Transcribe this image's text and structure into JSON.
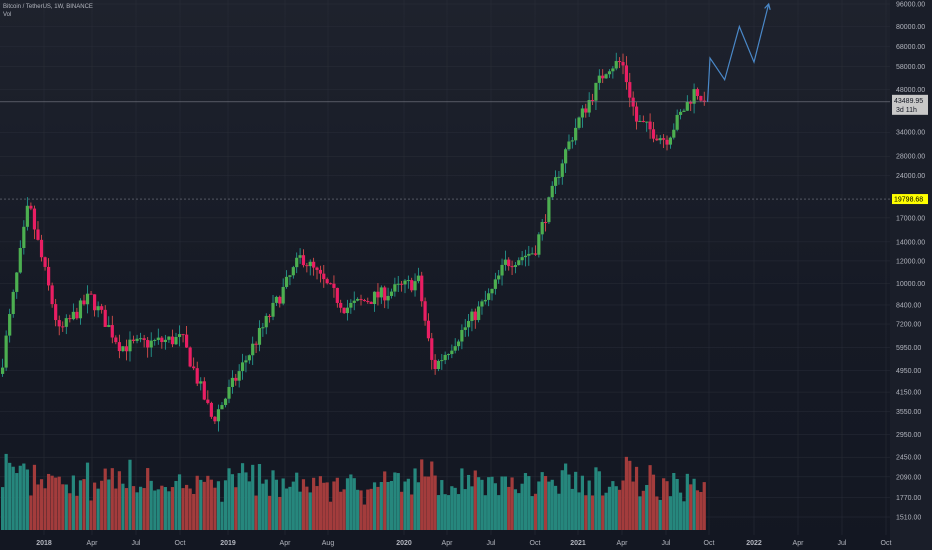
{
  "header": {
    "symbol_line": "Bitcoin / TetherUS, 1W, BINANCE",
    "volume_label": "Vol"
  },
  "price_axis": {
    "ticks": [
      96000,
      80000,
      68000,
      58000,
      48000,
      34000,
      28000,
      24000,
      17000,
      14000,
      12000,
      10000,
      8400,
      7200,
      5950,
      4950,
      4150,
      3550,
      2950,
      2450,
      2090,
      1770,
      1510
    ],
    "tick_labels": [
      "96000.00",
      "80000.00",
      "68000.00",
      "58000.00",
      "48000.00",
      "34000.00",
      "28000.00",
      "24000.00",
      "17000.00",
      "14000.00",
      "12000.00",
      "10000.00",
      "8400.00",
      "7200.00",
      "5950.00",
      "4950.00",
      "4150.00",
      "3550.00",
      "2950.00",
      "2450.00",
      "2090.00",
      "1770.00",
      "1510.00"
    ],
    "scale": "log"
  },
  "time_axis": {
    "labels": [
      "2018",
      "Apr",
      "Jul",
      "Oct",
      "2019",
      "Apr",
      "Aug",
      "2020",
      "Apr",
      "Jul",
      "Oct",
      "2021",
      "Apr",
      "Jul",
      "Oct",
      "2022",
      "Apr",
      "Jul",
      "Oct"
    ]
  },
  "current_price": {
    "value": "43489.95",
    "countdown": "3d 11h"
  },
  "ath_level": {
    "value": "19798.68"
  },
  "colors": {
    "up": "#26a69a",
    "down": "#ef5350",
    "up_body": "#4caf50",
    "down_body": "#e91e63",
    "vol_up": "#26877d",
    "vol_down": "#a33c3c",
    "projection": "#4a88c8",
    "grid": "#2a2e39",
    "text": "#b2b5be",
    "ath_badge": "#ffff00",
    "price_badge": "#c8c8c8"
  },
  "chart_data": {
    "type": "candlestick",
    "interval": "1W",
    "y_scale": "log",
    "time_labels": [
      "2018",
      "Apr",
      "Jul",
      "Oct",
      "2019",
      "Apr",
      "Aug",
      "2020",
      "Apr",
      "Jul",
      "Oct",
      "2021",
      "Apr",
      "Jul",
      "Oct",
      "2022",
      "Apr",
      "Jul",
      "Oct"
    ],
    "price_anchors": [
      {
        "period": "Oct 2017",
        "close": 4300
      },
      {
        "period": "Dec 2017",
        "close": 19000
      },
      {
        "period": "Feb 2018",
        "close": 6700
      },
      {
        "period": "Apr 2018",
        "close": 9000
      },
      {
        "period": "Jun 2018",
        "close": 6000
      },
      {
        "period": "Oct 2018",
        "close": 6400
      },
      {
        "period": "Dec 2018",
        "close": 3300
      },
      {
        "period": "Jun 2019",
        "close": 12500
      },
      {
        "period": "Sep 2019",
        "close": 8200
      },
      {
        "period": "Feb 2020",
        "close": 10200
      },
      {
        "period": "Mar 2020",
        "close": 5000
      },
      {
        "period": "Jul 2020",
        "close": 9200
      },
      {
        "period": "Aug 2020",
        "close": 11800
      },
      {
        "period": "Oct 2020",
        "close": 13000
      },
      {
        "period": "Dec 2020",
        "close": 28000
      },
      {
        "period": "Jan 2021",
        "close": 37000
      },
      {
        "period": "Mar 2021",
        "close": 58000
      },
      {
        "period": "Apr 2021",
        "close": 60000
      },
      {
        "period": "May 2021",
        "close": 37000
      },
      {
        "period": "Jul 2021",
        "close": 32000
      },
      {
        "period": "Sep 2021",
        "close": 48000
      },
      {
        "period": "Sep 2021",
        "close": 43489.95
      }
    ],
    "projection": [
      {
        "period": "Sep 2021",
        "price": 43489.95
      },
      {
        "period": "Oct 2021",
        "price": 62000
      },
      {
        "period": "Nov 2021",
        "price": 52000
      },
      {
        "period": "Dec 2021",
        "price": 80000
      },
      {
        "period": "Jan 2022",
        "price": 60000
      },
      {
        "period": "Feb 2022",
        "price": 96000
      }
    ],
    "current_price": 43489.95,
    "horizontal_level": 19798.68
  }
}
